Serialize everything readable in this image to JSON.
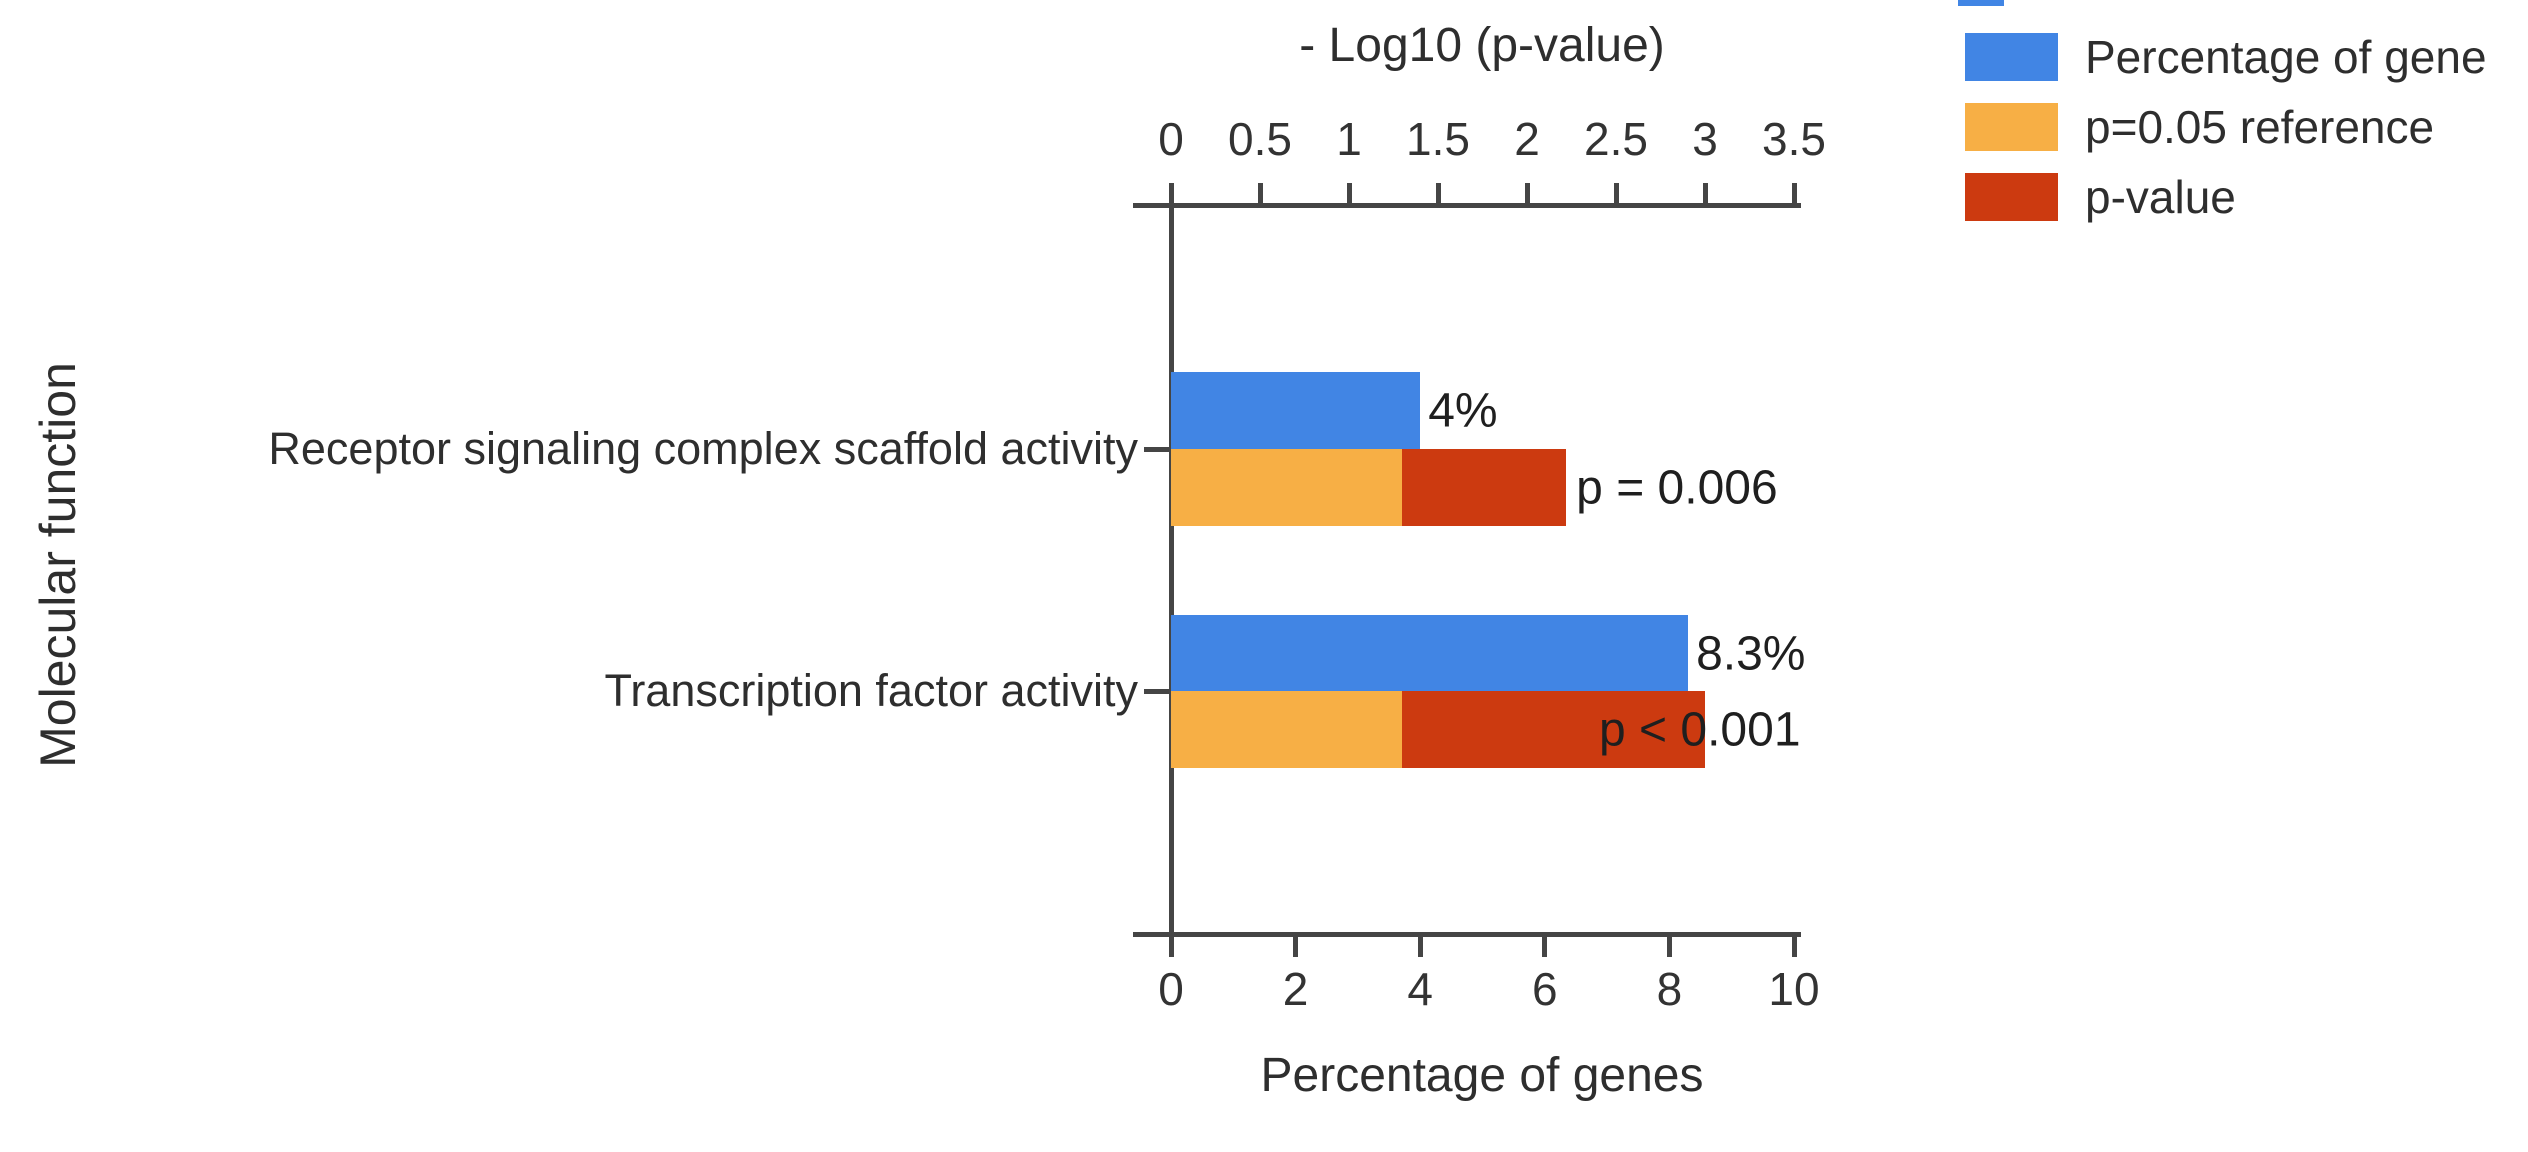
{
  "chart_data": {
    "type": "bar",
    "orientation": "horizontal",
    "ylabel": "Molecular function",
    "categories": [
      "Receptor signaling complex scaffold activity",
      "Transcription factor activity"
    ],
    "series": [
      {
        "name": "Percentage of gene",
        "axis": "bottom",
        "unit": "percent",
        "values": [
          4,
          8.3
        ],
        "color": "#4185e4"
      },
      {
        "name": "p=0.05 reference",
        "axis": "top",
        "unit": "-log10(p)",
        "values": [
          1.3,
          1.3
        ],
        "color": "#f7af45"
      },
      {
        "name": "p-value",
        "axis": "top",
        "unit": "-log10(p)",
        "values": [
          2.22,
          3.0
        ],
        "color": "#cc3a10"
      }
    ],
    "top_axis": {
      "title": "- Log10 (p-value)",
      "ticks": [
        "0",
        "0.5",
        "1",
        "1.5",
        "2",
        "2.5",
        "3",
        "3.5"
      ],
      "range": [
        0,
        3.5
      ]
    },
    "bottom_axis": {
      "title": "Percentage of genes",
      "ticks": [
        "0",
        "2",
        "4",
        "6",
        "8",
        "10"
      ],
      "range": [
        0,
        10
      ]
    },
    "annotations": {
      "percent_labels": [
        "4%",
        "8.3%"
      ],
      "pvalue_labels": [
        "p = 0.006",
        "p < 0.001"
      ]
    },
    "legend_position": "top-right",
    "grid": false
  },
  "legend": {
    "items": [
      {
        "label": "Percentage of gene",
        "color": "#4185e4"
      },
      {
        "label": "p=0.05 reference",
        "color": "#f7af45"
      },
      {
        "label": "p-value",
        "color": "#cc3a10"
      }
    ]
  },
  "colors": {
    "blue": "#4185e4",
    "orange": "#f7af45",
    "red": "#cc3a10",
    "axis": "#454545",
    "background": "#ffffff"
  }
}
